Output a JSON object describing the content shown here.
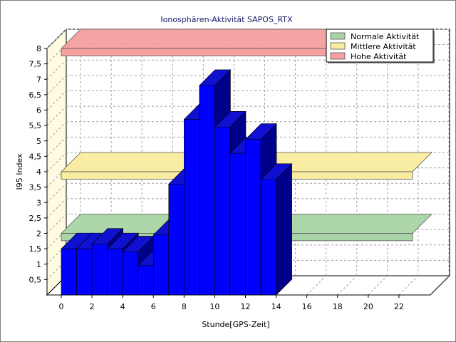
{
  "chart_data": {
    "type": "bar",
    "title": "Ionosphären-Aktivität SAPOS_RTX",
    "xlabel": "Stunde[GPS-Zeit]",
    "ylabel": "I95 Index",
    "x_ticks": [
      "0",
      "2",
      "4",
      "6",
      "8",
      "10",
      "12",
      "14",
      "16",
      "18",
      "20",
      "22"
    ],
    "y_ticks": [
      "0,5",
      "1",
      "1,5",
      "2",
      "2,5",
      "3",
      "3,5",
      "4",
      "4,5",
      "5",
      "5,5",
      "6",
      "6,5",
      "7",
      "7,5",
      "8"
    ],
    "ylim": [
      0,
      8
    ],
    "xlim": [
      0,
      24
    ],
    "categories": [
      0,
      1,
      2,
      3,
      4,
      5,
      6,
      7,
      8,
      9,
      10,
      11,
      12,
      13
    ],
    "values": [
      1.5,
      1.5,
      1.65,
      1.5,
      1.4,
      0.95,
      1.95,
      3.6,
      5.7,
      6.8,
      5.45,
      4.6,
      5.05,
      3.75
    ],
    "bands": [
      {
        "name": "Normale Aktivität",
        "value": 2.0,
        "color": "#a9d4a5"
      },
      {
        "name": "Mittlere Aktivität",
        "value": 4.0,
        "color": "#f9ec9f"
      },
      {
        "name": "Hohe Aktivität",
        "value": 8.0,
        "color": "#f5a0a0"
      }
    ],
    "bar_color": "#0000ff",
    "bar_side_color": "#00008b",
    "grid": true,
    "legend_position": "top-right"
  }
}
